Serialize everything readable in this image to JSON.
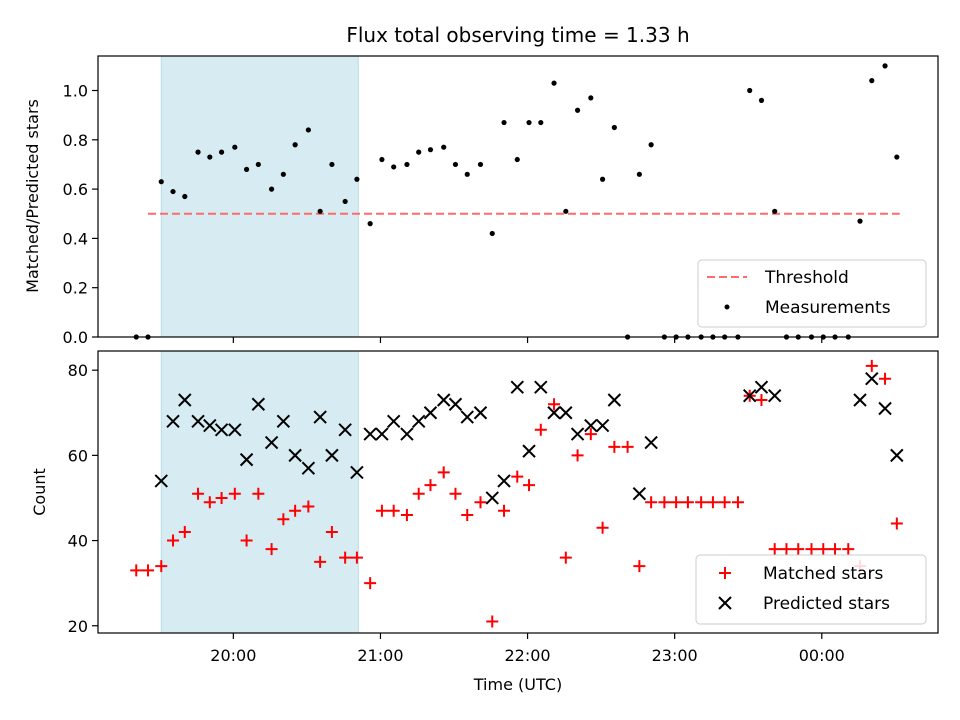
{
  "chart_data": [
    {
      "type": "scatter",
      "title": "Flux total observing time = 1.33 h",
      "xlabel": "",
      "ylabel": "Matched/Predicted stars",
      "ylim": [
        0,
        1.14
      ],
      "yticks": [
        "0.0",
        "0.2",
        "0.4",
        "0.6",
        "0.8",
        "1.0"
      ],
      "xticks": [
        "20:00",
        "21:00",
        "22:00",
        "23:00",
        "00:00"
      ],
      "xlim_hours": [
        19.08,
        24.79
      ],
      "shaded_span_hours": [
        19.51,
        20.85
      ],
      "shaded_color": "#add8e6",
      "threshold": {
        "name": "Threshold",
        "value": 0.5,
        "x_range_hours": [
          19.42,
          24.53
        ],
        "color": "#ff6b6b"
      },
      "series": [
        {
          "name": "Measurements",
          "marker": "dot",
          "color": "#000000",
          "x": [
            19.34,
            19.42,
            19.51,
            19.59,
            19.67,
            19.76,
            19.84,
            19.92,
            20.01,
            20.09,
            20.17,
            20.26,
            20.34,
            20.42,
            20.51,
            20.59,
            20.67,
            20.76,
            20.84,
            20.93,
            21.01,
            21.09,
            21.18,
            21.26,
            21.34,
            21.43,
            21.51,
            21.59,
            21.68,
            21.76,
            21.84,
            21.93,
            22.01,
            22.09,
            22.18,
            22.26,
            22.34,
            22.43,
            22.51,
            22.59,
            22.68,
            22.76,
            22.84,
            22.93,
            23.01,
            23.09,
            23.18,
            23.26,
            23.34,
            23.43,
            23.51,
            23.59,
            23.68,
            23.76,
            23.84,
            23.93,
            24.01,
            24.09,
            24.18,
            24.26,
            24.34,
            24.43,
            24.51
          ],
          "y": [
            0,
            0,
            0.63,
            0.59,
            0.57,
            0.75,
            0.73,
            0.75,
            0.77,
            0.68,
            0.7,
            0.6,
            0.66,
            0.78,
            0.84,
            0.51,
            0.7,
            0.55,
            0.64,
            0.46,
            0.72,
            0.69,
            0.7,
            0.75,
            0.76,
            0.77,
            0.7,
            0.66,
            0.7,
            0.42,
            0.87,
            0.72,
            0.87,
            0.87,
            1.03,
            0.51,
            0.92,
            0.97,
            0.64,
            0.85,
            0,
            0.66,
            0.78,
            0,
            0,
            0,
            0,
            0,
            0,
            0,
            1.0,
            0.96,
            0.51,
            0,
            0,
            0,
            0,
            0,
            0,
            0.47,
            1.04,
            1.1,
            0.73
          ]
        }
      ]
    },
    {
      "type": "scatter",
      "title": "",
      "xlabel": "Time (UTC)",
      "ylabel": "Count",
      "ylim": [
        18.3,
        84.5
      ],
      "yticks": [
        "20",
        "40",
        "60",
        "80"
      ],
      "xticks": [
        "20:00",
        "21:00",
        "22:00",
        "23:00",
        "00:00"
      ],
      "xlim_hours": [
        19.08,
        24.79
      ],
      "shaded_span_hours": [
        19.51,
        20.85
      ],
      "shaded_color": "#add8e6",
      "series": [
        {
          "name": "Matched stars",
          "marker": "plus",
          "color": "#ff0000",
          "x": [
            19.34,
            19.42,
            19.51,
            19.59,
            19.67,
            19.76,
            19.84,
            19.92,
            20.01,
            20.09,
            20.17,
            20.26,
            20.34,
            20.42,
            20.51,
            20.59,
            20.67,
            20.76,
            20.84,
            20.93,
            21.01,
            21.09,
            21.18,
            21.26,
            21.34,
            21.43,
            21.51,
            21.59,
            21.68,
            21.76,
            21.84,
            21.93,
            22.01,
            22.09,
            22.18,
            22.26,
            22.34,
            22.43,
            22.51,
            22.59,
            22.68,
            22.76,
            22.84,
            22.93,
            23.01,
            23.09,
            23.18,
            23.26,
            23.34,
            23.43,
            23.51,
            23.59,
            23.68,
            23.76,
            23.84,
            23.93,
            24.01,
            24.09,
            24.18,
            24.26,
            24.34,
            24.43,
            24.51
          ],
          "y": [
            33,
            33,
            34,
            40,
            42,
            51,
            49,
            50,
            51,
            40,
            51,
            38,
            45,
            47,
            48,
            35,
            42,
            36,
            36,
            30,
            47,
            47,
            46,
            51,
            53,
            56,
            51,
            46,
            49,
            21,
            47,
            55,
            53,
            66,
            72,
            36,
            60,
            65,
            43,
            62,
            62,
            34,
            49,
            49,
            49,
            49,
            49,
            49,
            49,
            49,
            74,
            73,
            38,
            38,
            38,
            38,
            38,
            38,
            38,
            34,
            81,
            78,
            44
          ]
        },
        {
          "name": "Predicted stars",
          "marker": "cross",
          "color": "#000000",
          "x": [
            19.51,
            19.59,
            19.67,
            19.76,
            19.84,
            19.92,
            20.01,
            20.09,
            20.17,
            20.26,
            20.34,
            20.42,
            20.51,
            20.59,
            20.67,
            20.76,
            20.84,
            20.93,
            21.01,
            21.09,
            21.18,
            21.26,
            21.34,
            21.43,
            21.51,
            21.59,
            21.68,
            21.76,
            21.84,
            21.93,
            22.01,
            22.09,
            22.18,
            22.26,
            22.34,
            22.43,
            22.51,
            22.59,
            22.76,
            22.84,
            23.51,
            23.59,
            23.68,
            24.26,
            24.34,
            24.43,
            24.51
          ],
          "y": [
            54,
            68,
            73,
            68,
            67,
            66,
            66,
            59,
            72,
            63,
            68,
            60,
            57,
            69,
            60,
            66,
            56,
            65,
            65,
            68,
            65,
            68,
            70,
            73,
            72,
            69,
            70,
            50,
            54,
            76,
            61,
            76,
            70,
            70,
            65,
            67,
            67,
            73,
            51,
            63,
            74,
            76,
            74,
            73,
            78,
            71,
            60
          ]
        }
      ]
    }
  ]
}
